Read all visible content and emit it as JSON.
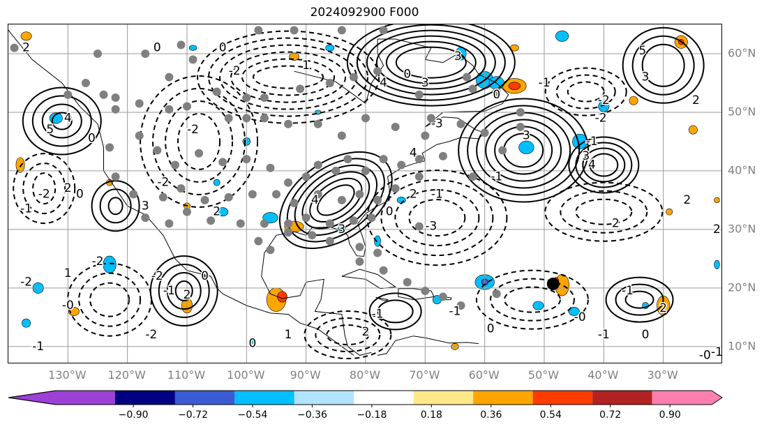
{
  "title": "2024092900 F000",
  "map": {
    "lon_range": [
      -140,
      -20
    ],
    "lat_range": [
      7,
      65
    ],
    "lon_labels": [
      "130°W",
      "120°W",
      "110°W",
      "100°W",
      "90°W",
      "80°W",
      "70°W",
      "60°W",
      "50°W",
      "40°W",
      "30°W"
    ],
    "lon_values": [
      -130,
      -120,
      -110,
      -100,
      -90,
      -80,
      -70,
      -60,
      -50,
      -40,
      -30
    ],
    "lat_labels": [
      "10°N",
      "20°N",
      "30°N",
      "40°N",
      "50°N",
      "60°N"
    ],
    "lat_values": [
      10,
      20,
      30,
      40,
      50,
      60
    ],
    "marker_black": {
      "lon": -48.5,
      "lat": 20.7
    },
    "contour_labels": [
      {
        "text": "5",
        "lon": -33.5,
        "lat": 60.5
      },
      {
        "text": "3",
        "lon": -33,
        "lat": 56
      },
      {
        "text": "3",
        "lon": -53,
        "lat": 46
      },
      {
        "text": "4",
        "lon": -42,
        "lat": 41
      },
      {
        "text": "3",
        "lon": -43,
        "lat": 42.5
      },
      {
        "text": "3",
        "lon": -117,
        "lat": 34
      },
      {
        "text": "4",
        "lon": -130,
        "lat": 49
      },
      {
        "text": "5",
        "lon": -133,
        "lat": 47
      },
      {
        "text": "2",
        "lon": -137,
        "lat": 61
      },
      {
        "text": "0",
        "lon": -104,
        "lat": 61
      },
      {
        "text": "0",
        "lon": -115,
        "lat": 61
      },
      {
        "text": "-2",
        "lon": -102,
        "lat": 57
      },
      {
        "text": "-2",
        "lon": -109,
        "lat": 47
      },
      {
        "text": "-2",
        "lon": -114,
        "lat": 38
      },
      {
        "text": "-2",
        "lon": -134,
        "lat": 36
      },
      {
        "text": "-1",
        "lon": -137,
        "lat": 33.5
      },
      {
        "text": "0",
        "lon": -128,
        "lat": 36
      },
      {
        "text": "2",
        "lon": -130,
        "lat": 37
      },
      {
        "text": "-1",
        "lon": -50,
        "lat": 55
      },
      {
        "text": "0",
        "lon": -58,
        "lat": 53
      },
      {
        "text": "-2",
        "lon": -40.5,
        "lat": 49
      },
      {
        "text": "-1",
        "lon": -42,
        "lat": 45
      },
      {
        "text": "-2",
        "lon": -40,
        "lat": 52
      },
      {
        "text": "2",
        "lon": -24.5,
        "lat": 52
      },
      {
        "text": "2",
        "lon": -38,
        "lat": 31
      },
      {
        "text": "2",
        "lon": -26,
        "lat": 35
      },
      {
        "text": "-3",
        "lon": -69,
        "lat": 30.5
      },
      {
        "text": "-1",
        "lon": -68,
        "lat": 36
      },
      {
        "text": "-1",
        "lon": -36,
        "lat": 19.5
      },
      {
        "text": "0",
        "lon": -76,
        "lat": 33
      },
      {
        "text": "-2",
        "lon": -137,
        "lat": 21
      },
      {
        "text": "1",
        "lon": -130,
        "lat": 22.5
      },
      {
        "text": "-2",
        "lon": -125,
        "lat": 24.5
      },
      {
        "text": "-1",
        "lon": -113,
        "lat": 19.5
      },
      {
        "text": "-2",
        "lon": -115,
        "lat": 22
      },
      {
        "text": "0",
        "lon": -107,
        "lat": 22
      },
      {
        "text": "2",
        "lon": -110,
        "lat": 18.8
      },
      {
        "text": "-2",
        "lon": -116,
        "lat": 12
      },
      {
        "text": "-0",
        "lon": -130,
        "lat": 17
      },
      {
        "text": "-1",
        "lon": -135,
        "lat": 10
      },
      {
        "text": "0",
        "lon": -99,
        "lat": 10.5
      },
      {
        "text": "1",
        "lon": -93,
        "lat": 12
      },
      {
        "text": "-1",
        "lon": -78,
        "lat": 15.5
      },
      {
        "text": "2",
        "lon": -80,
        "lat": 12.5
      },
      {
        "text": "-1",
        "lon": -65,
        "lat": 16
      },
      {
        "text": "0",
        "lon": -59,
        "lat": 13
      },
      {
        "text": "-0",
        "lon": -44,
        "lat": 15
      },
      {
        "text": "-1",
        "lon": -40,
        "lat": 12
      },
      {
        "text": "2",
        "lon": -30,
        "lat": 16.5
      },
      {
        "text": "0",
        "lon": -33,
        "lat": 12
      },
      {
        "text": "-0",
        "lon": -23,
        "lat": 8.5
      },
      {
        "text": "-1",
        "lon": -21,
        "lat": 9
      },
      {
        "text": "2",
        "lon": -21,
        "lat": 30
      },
      {
        "text": "3",
        "lon": -84,
        "lat": 30
      },
      {
        "text": "4",
        "lon": -88.5,
        "lat": 35
      },
      {
        "text": "2",
        "lon": -105,
        "lat": 33
      },
      {
        "text": "0",
        "lon": -126,
        "lat": 45.5
      },
      {
        "text": "3",
        "lon": -64.5,
        "lat": 59.5
      },
      {
        "text": "4",
        "lon": -77,
        "lat": 55
      },
      {
        "text": "3",
        "lon": -70,
        "lat": 55
      },
      {
        "text": "1",
        "lon": -90,
        "lat": 58
      },
      {
        "text": "-3",
        "lon": -68,
        "lat": 48
      },
      {
        "text": "0",
        "lon": -73,
        "lat": 56.5
      },
      {
        "text": "4",
        "lon": -72,
        "lat": 43
      },
      {
        "text": "2",
        "lon": -72,
        "lat": 36
      },
      {
        "text": "-1",
        "lon": -58,
        "lat": 39
      }
    ]
  },
  "colorbar": {
    "colors": [
      "#9c40d6",
      "#000080",
      "#3b5bd4",
      "#00bfff",
      "#b2e3ff",
      "#ffffff",
      "#ffe88a",
      "#ffa500",
      "#ff3b00",
      "#b22222",
      "#ff7fb0"
    ],
    "labels": [
      "−0.90",
      "−0.72",
      "−0.54",
      "−0.36",
      "−0.18",
      "0.18",
      "0.36",
      "0.54",
      "0.72",
      "0.90"
    ]
  }
}
